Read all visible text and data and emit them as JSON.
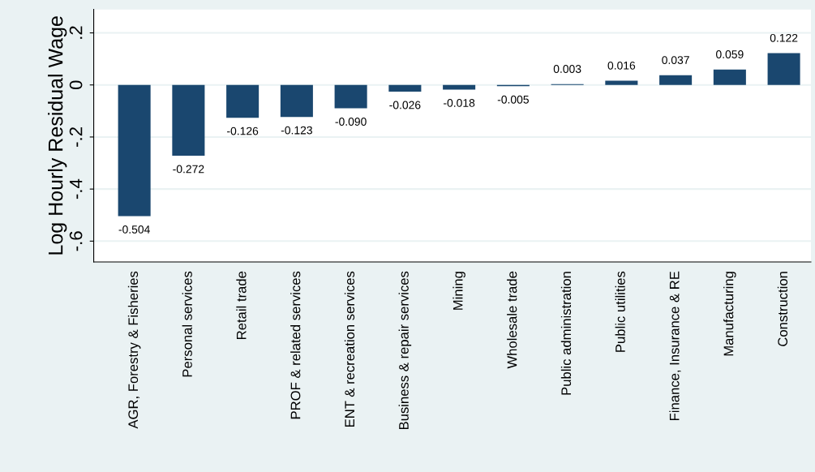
{
  "chart_data": {
    "type": "bar",
    "ylabel": "Log Hourly Residual Wage",
    "categories": [
      "AGR, Forestry & Fisheries",
      "Personal services",
      "Retail trade",
      "PROF & related services",
      "ENT & recreation services",
      "Business & repair services",
      "Mining",
      "Wholesale trade",
      "Public administration",
      "Public utilities",
      "Finance, Insurance & RE",
      "Manufacturing",
      "Construction"
    ],
    "values": [
      -0.504,
      -0.272,
      -0.126,
      -0.123,
      -0.09,
      -0.026,
      -0.018,
      -0.005,
      0.003,
      0.016,
      0.037,
      0.059,
      0.122
    ],
    "value_labels": [
      "-0.504",
      "-0.272",
      "-0.126",
      "-0.123",
      "-0.090",
      "-0.026",
      "-0.018",
      "-0.005",
      "0.003",
      "0.016",
      "0.037",
      "0.059",
      "0.122"
    ],
    "color": "#1a476f",
    "ylim": [
      -0.68,
      0.29
    ],
    "yticks": [
      {
        "value": -0.6,
        "label": "-.6"
      },
      {
        "value": -0.4,
        "label": "-.4"
      },
      {
        "value": -0.2,
        "label": "-.2"
      },
      0,
      {
        "value": 0.2,
        "label": ".2"
      }
    ],
    "grid": "y"
  }
}
